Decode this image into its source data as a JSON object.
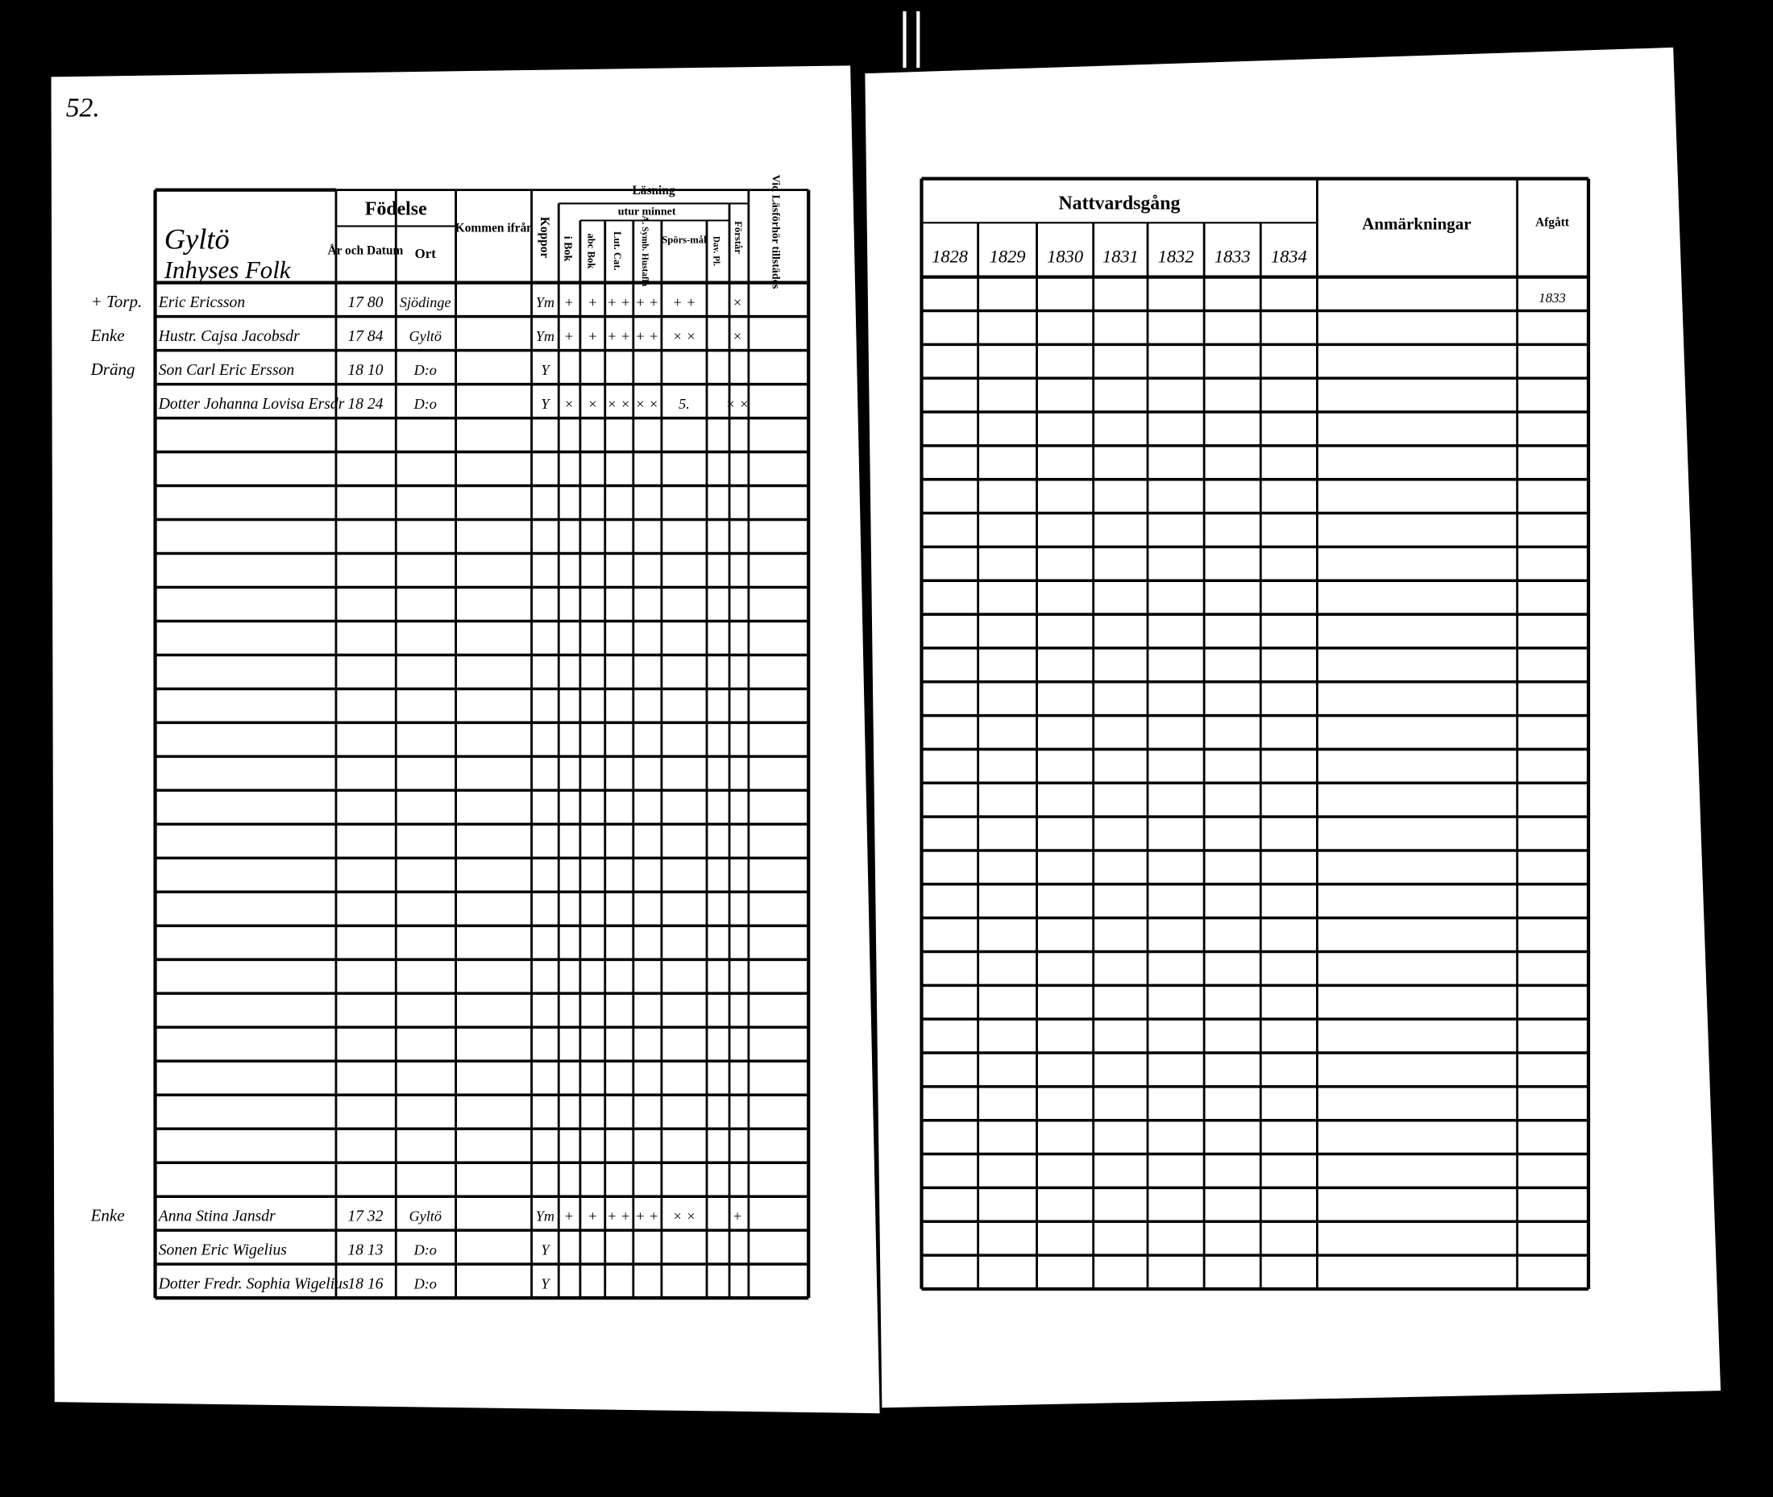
{
  "page_number": "52.",
  "left_table": {
    "place": "Gyltö",
    "group": "Inhyses Folk",
    "headers": {
      "birth": "Födelse",
      "year_date": "År och Datum",
      "place": "Ort",
      "came_from": "Kommen ifrån",
      "pox": "Koppor",
      "reading": "Läsning",
      "in_book": "i Bok",
      "by_heart": "utur minnet",
      "abc_book": "abc Bok",
      "catechism": "Lut. Cat.",
      "house_table": "A. Symb. Hustafla",
      "questions": "Spörs-mål",
      "david": "Dav. Pl.",
      "understands": "Förstår",
      "present": "Vid Läsförhör tillstädes"
    },
    "entries_top": [
      {
        "margin": "+ Torp.",
        "name": "Eric Ericsson",
        "born": "17 80",
        "place": "Sjödinge",
        "pox": "Ym",
        "marks": [
          "+",
          "+",
          "+ +",
          "+ +",
          "+ +"
        ],
        "understands": "×"
      },
      {
        "margin": "Enke",
        "name": "Hustr. Cajsa Jacobsdr",
        "born": "17 84",
        "place": "Gyltö",
        "pox": "Ym",
        "marks": [
          "+",
          "+",
          "+ +",
          "+ +",
          "× ×"
        ],
        "understands": "×"
      },
      {
        "margin": "Dräng",
        "name": "Son Carl Eric Ersson",
        "born": "18 10",
        "place": "D:o",
        "pox": "Y"
      },
      {
        "name": "Dotter Johanna Lovisa Ersdr",
        "born": "18 24",
        "place": "D:o",
        "pox": "Y",
        "marks": [
          "×",
          "×",
          "× ×",
          "× ×",
          "5."
        ],
        "understands": "× ×"
      }
    ],
    "entries_bottom": [
      {
        "margin": "Enke",
        "name": "Anna Stina Jansdr",
        "born": "17 32",
        "place": "Gyltö",
        "pox": "Ym",
        "marks": [
          "+",
          "+",
          "+ +",
          "+ +",
          "× ×"
        ],
        "understands": "+"
      },
      {
        "name": "Sonen Eric Wigelius",
        "born": "18 13",
        "place": "D:o",
        "pox": "Y"
      },
      {
        "name": "Dotter Fredr. Sophia Wigelius",
        "born": "18 16",
        "place": "D:o",
        "pox": "Y"
      }
    ]
  },
  "right_table": {
    "communion": "Nattvardsgång",
    "years": [
      "1828",
      "1829",
      "1830",
      "1831",
      "1832",
      "1833",
      "1834"
    ],
    "remarks": "Anmärkningar",
    "departed": "Afgått",
    "departed_entry": "1833"
  }
}
